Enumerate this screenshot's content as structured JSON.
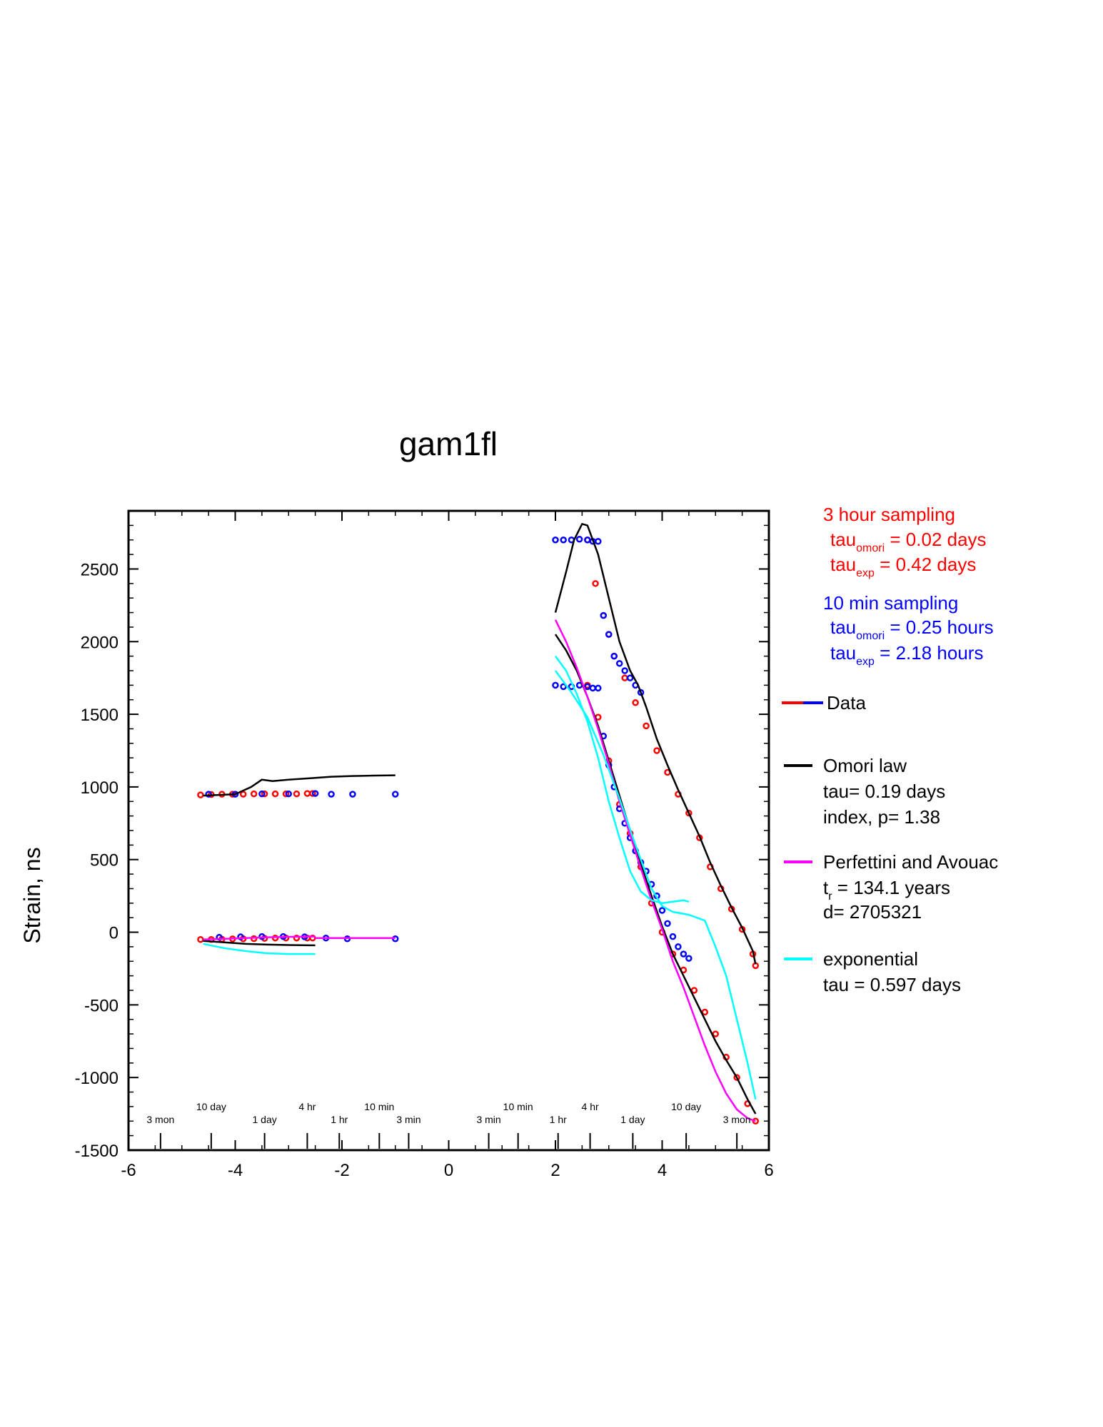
{
  "chart_data": {
    "type": "scatter",
    "title": "gam1fl",
    "ylabel": "Strain, ns",
    "xlabel": "",
    "xlim": [
      -6,
      6
    ],
    "ylim": [
      -1500,
      2900
    ],
    "x_ticks": [
      "-6",
      "-4",
      "-2",
      "0",
      "2",
      "4",
      "6"
    ],
    "y_ticks": [
      "-1500",
      "-1000",
      "-500",
      "0",
      "500",
      "1000",
      "1500",
      "2000",
      "2500"
    ],
    "duration_marks_left": [
      {
        "label": "3 mon",
        "x": -5.4
      },
      {
        "label": "10 day",
        "x": -4.45
      },
      {
        "label": "1 day",
        "x": -3.45
      },
      {
        "label": "4 hr",
        "x": -2.65
      },
      {
        "label": "1 hr",
        "x": -2.05
      },
      {
        "label": "10 min",
        "x": -1.3
      },
      {
        "label": "3 min",
        "x": -0.75
      }
    ],
    "duration_marks_right": [
      {
        "label": "3 min",
        "x": 0.75
      },
      {
        "label": "10 min",
        "x": 1.3
      },
      {
        "label": "1 hr",
        "x": 2.05
      },
      {
        "label": "4 hr",
        "x": 2.65
      },
      {
        "label": "1 day",
        "x": 3.45
      },
      {
        "label": "10 day",
        "x": 4.45
      },
      {
        "label": "3 mon",
        "x": 5.4
      }
    ],
    "annotations": {
      "red_group": {
        "title": "3 hour sampling",
        "omori_main": "tau",
        "omori_sub": "omori",
        "omori_value": " = 0.02 days",
        "exp_main": "tau",
        "exp_sub": "exp",
        "exp_value": " = 0.42 days"
      },
      "blue_group": {
        "title": "10 min sampling",
        "omori_main": "tau",
        "omori_sub": "omori",
        "omori_value": " = 0.25 hours",
        "exp_main": "tau",
        "exp_sub": "exp",
        "exp_value": " = 2.18 hours"
      }
    },
    "legend": {
      "data": "Data",
      "omori_name": "Omori law",
      "omori_tau": "tau= 0.19 days",
      "omori_p": "index, p= 1.38",
      "perf_name": "Perfettini and Avouac",
      "perf_tr_main": "t",
      "perf_tr_sub": "r",
      "perf_tr_value": " = 134.1 years",
      "perf_d": "d= 2705321",
      "exp_name": "exponential",
      "exp_tau": "tau = 0.597 days"
    },
    "colors": {
      "data_3hr": "#ff0000",
      "data_10min": "#0000ff",
      "omori": "#000000",
      "perfettini": "#ff00ff",
      "exponential": "#00ffff"
    },
    "series": [
      {
        "name": "3 hour sampling",
        "color": "#ff0000",
        "kind": "points",
        "x": [
          -4.65,
          -4.45,
          -4.25,
          -4.05,
          -3.85,
          -3.65,
          -3.45,
          -3.25,
          -3.05,
          -2.85,
          -2.65,
          -2.55
        ],
        "y": [
          945,
          948,
          950,
          950,
          950,
          952,
          952,
          952,
          952,
          952,
          955,
          955
        ]
      },
      {
        "name": "3 hour sampling",
        "color": "#ff0000",
        "kind": "points",
        "x": [
          -4.65,
          -4.45,
          -4.25,
          -4.05,
          -3.85,
          -3.65,
          -3.45,
          -3.25,
          -3.05,
          -2.85,
          -2.65,
          -2.55
        ],
        "y": [
          -50,
          -50,
          -48,
          -46,
          -45,
          -44,
          -42,
          -40,
          -40,
          -40,
          -40,
          -40
        ]
      },
      {
        "name": "3 hour sampling",
        "color": "#ff0000",
        "kind": "points",
        "x": [
          2.6,
          2.75,
          2.9,
          3.0,
          3.1,
          3.3,
          3.5,
          3.7,
          3.9,
          4.1,
          4.3,
          4.5,
          4.7,
          4.9,
          5.1,
          5.3,
          5.5,
          5.7,
          5.75
        ],
        "y": [
          2700,
          2400,
          2180,
          2050,
          1900,
          1750,
          1580,
          1420,
          1250,
          1100,
          950,
          820,
          650,
          450,
          300,
          160,
          20,
          -150,
          -230
        ]
      },
      {
        "name": "3 hour sampling",
        "color": "#ff0000",
        "kind": "points",
        "x": [
          2.6,
          2.8,
          3.0,
          3.2,
          3.4,
          3.6,
          3.8,
          4.0,
          4.2,
          4.4,
          4.6,
          4.8,
          5.0,
          5.2,
          5.4,
          5.6,
          5.75
        ],
        "y": [
          1700,
          1480,
          1180,
          880,
          680,
          450,
          200,
          0,
          -150,
          -260,
          -400,
          -550,
          -700,
          -860,
          -1000,
          -1180,
          -1300
        ]
      },
      {
        "name": "10 min sampling",
        "color": "#0000ff",
        "kind": "points",
        "x": [
          -4.5,
          -4.0,
          -3.5,
          -3.0,
          -2.5,
          -2.2,
          -1.8,
          -1.0
        ],
        "y": [
          950,
          950,
          952,
          952,
          955,
          950,
          950,
          950
        ]
      },
      {
        "name": "10 min sampling",
        "color": "#0000ff",
        "kind": "points",
        "x": [
          -4.3,
          -3.9,
          -3.5,
          -3.1,
          -2.7,
          -2.3,
          -1.9,
          -1.0
        ],
        "y": [
          -35,
          -32,
          -30,
          -30,
          -32,
          -40,
          -45,
          -45
        ]
      },
      {
        "name": "10 min sampling",
        "color": "#0000ff",
        "kind": "points",
        "x": [
          2.0,
          2.15,
          2.3,
          2.45,
          2.6,
          2.7,
          2.8,
          2.9,
          3.0,
          3.1,
          3.2,
          3.3,
          3.4,
          3.5,
          3.6
        ],
        "y": [
          2700,
          2700,
          2700,
          2705,
          2700,
          2690,
          2690,
          2180,
          2050,
          1900,
          1850,
          1800,
          1750,
          1700,
          1650
        ]
      },
      {
        "name": "10 min sampling",
        "color": "#0000ff",
        "kind": "points",
        "x": [
          2.0,
          2.15,
          2.3,
          2.45,
          2.6,
          2.7,
          2.8,
          2.9,
          3.0,
          3.1,
          3.2,
          3.3,
          3.4,
          3.5,
          3.6,
          3.7,
          3.8,
          3.9,
          4.0,
          4.1,
          4.2,
          4.3,
          4.4,
          4.5
        ],
        "y": [
          1700,
          1690,
          1690,
          1700,
          1690,
          1680,
          1680,
          1350,
          1150,
          1000,
          850,
          750,
          650,
          560,
          480,
          420,
          330,
          250,
          150,
          60,
          -30,
          -100,
          -150,
          -180
        ]
      },
      {
        "name": "Omori law",
        "color": "#000000",
        "kind": "line",
        "x": [
          -4.6,
          -4.3,
          -4.0,
          -3.7,
          -3.5,
          -3.3,
          -3.0,
          -2.6,
          -2.2,
          -1.8,
          -1.4,
          -1.0
        ],
        "y": [
          940,
          945,
          950,
          1000,
          1050,
          1040,
          1050,
          1060,
          1070,
          1075,
          1078,
          1080
        ]
      },
      {
        "name": "Omori law",
        "color": "#000000",
        "kind": "line",
        "x": [
          -4.6,
          -4.2,
          -3.8,
          -3.4,
          -3.0,
          -2.6,
          -2.5
        ],
        "y": [
          -60,
          -70,
          -80,
          -85,
          -88,
          -90,
          -90
        ]
      },
      {
        "name": "Omori law",
        "color": "#000000",
        "kind": "line",
        "x": [
          2.0,
          2.2,
          2.35,
          2.5,
          2.6,
          2.8,
          3.0,
          3.2,
          3.4,
          3.55,
          3.7,
          3.9,
          4.1,
          4.3,
          4.5,
          4.7,
          4.9,
          5.1,
          5.3,
          5.5,
          5.7,
          5.75
        ],
        "y": [
          2200,
          2480,
          2700,
          2810,
          2800,
          2600,
          2300,
          2000,
          1800,
          1700,
          1550,
          1330,
          1150,
          980,
          820,
          660,
          480,
          320,
          170,
          30,
          -130,
          -220
        ]
      },
      {
        "name": "Omori law",
        "color": "#000000",
        "kind": "line",
        "x": [
          2.0,
          2.2,
          2.4,
          2.6,
          2.8,
          3.0,
          3.2,
          3.4,
          3.6,
          3.8,
          4.0,
          4.2,
          4.4,
          4.6,
          4.8,
          5.0,
          5.2,
          5.4,
          5.6,
          5.75
        ],
        "y": [
          2050,
          1940,
          1800,
          1620,
          1420,
          1180,
          940,
          700,
          470,
          250,
          40,
          -150,
          -300,
          -450,
          -600,
          -750,
          -880,
          -1000,
          -1150,
          -1250
        ]
      },
      {
        "name": "Perfettini and Avouac",
        "color": "#ff00ff",
        "kind": "line",
        "x": [
          2.0,
          2.2,
          2.4,
          2.6,
          2.8,
          3.0,
          3.2,
          3.4,
          3.6,
          3.8,
          4.0,
          4.2,
          4.4,
          4.6,
          4.8,
          5.0,
          5.2,
          5.4,
          5.6,
          5.75
        ],
        "y": [
          2150,
          2000,
          1820,
          1620,
          1400,
          1160,
          900,
          670,
          440,
          220,
          20,
          -200,
          -380,
          -580,
          -780,
          -960,
          -1110,
          -1220,
          -1280,
          -1300
        ]
      },
      {
        "name": "Perfettini and Avouac",
        "color": "#ff00ff",
        "kind": "line",
        "x": [
          -4.6,
          -4.2,
          -3.8,
          -3.4,
          -3.0,
          -2.6,
          -2.5
        ],
        "y": [
          -50,
          -45,
          -40,
          -35,
          -32,
          -30,
          -30
        ]
      },
      {
        "name": "Perfettini and Avouac",
        "color": "#ff00ff",
        "kind": "line",
        "x": [
          -2.5,
          -1.0
        ],
        "y": [
          -40,
          -40
        ]
      },
      {
        "name": "exponential",
        "color": "#00ffff",
        "kind": "line",
        "x": [
          2.0,
          2.2,
          2.4,
          2.6,
          2.8,
          3.0,
          3.2,
          3.4,
          3.6,
          3.8,
          4.0,
          4.2,
          4.4,
          4.5
        ],
        "y": [
          1900,
          1800,
          1640,
          1450,
          1200,
          900,
          650,
          420,
          280,
          220,
          200,
          210,
          220,
          210
        ]
      },
      {
        "name": "exponential",
        "color": "#00ffff",
        "kind": "line",
        "x": [
          2.0,
          2.3,
          2.6,
          2.9,
          3.2,
          3.5,
          3.8,
          4.0,
          4.2,
          4.5,
          4.8,
          5.0,
          5.2,
          5.4,
          5.6,
          5.75
        ],
        "y": [
          1800,
          1650,
          1480,
          1220,
          920,
          600,
          300,
          180,
          140,
          120,
          80,
          -100,
          -300,
          -600,
          -900,
          -1150
        ]
      },
      {
        "name": "exponential",
        "color": "#00ffff",
        "kind": "line",
        "x": [
          -4.6,
          -4.2,
          -3.8,
          -3.4,
          -3.0,
          -2.6,
          -2.5
        ],
        "y": [
          -80,
          -110,
          -130,
          -145,
          -150,
          -150,
          -150
        ]
      }
    ]
  }
}
